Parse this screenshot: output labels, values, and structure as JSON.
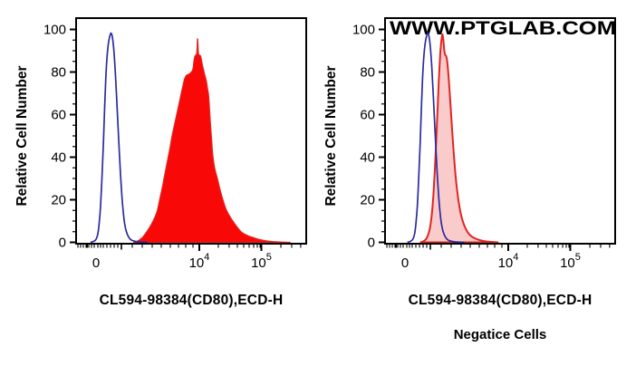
{
  "figure": {
    "watermark": "WWW.PTGLAB.COM",
    "background": "#ffffff"
  },
  "colors": {
    "axis": "#000000",
    "blue_curve": "#2b2ba0",
    "red_fill": "#f90808",
    "red_stroke": "#e02520",
    "pink_fill": "#f9cbca",
    "watermark_gray": "#d3d3d3"
  },
  "chart_data": [
    {
      "type": "area",
      "panel": "left",
      "title": "",
      "xlabel": "CL594-98384(CD80),ECD-H",
      "ylabel": "Relative Cell Number",
      "caption": "",
      "watermark": "",
      "x_scale": "biexponential (flow cytometry fluorescence axis)",
      "ylim": [
        0,
        100
      ],
      "y_major_ticks": [
        0,
        20,
        40,
        60,
        80,
        100
      ],
      "y_minor_ticks": [
        5,
        10,
        15,
        25,
        30,
        35,
        45,
        50,
        55,
        65,
        70,
        75,
        85,
        90,
        95
      ],
      "x_ticks": [
        {
          "frac": 0.0866,
          "base": "0",
          "exp": ""
        },
        {
          "frac": 0.5354,
          "base": "10",
          "exp": "4"
        },
        {
          "frac": 0.805,
          "base": "10",
          "exp": "5"
        }
      ],
      "x_medium_ticks": [
        0.1969
      ],
      "x_minor_ticks": [
        0.008,
        0.0197,
        0.0315,
        0.0433,
        0.0462,
        0.0492,
        0.0551,
        0.0669,
        0.0787,
        0.0945,
        0.1063,
        0.1181,
        0.1339,
        0.1496,
        0.1654,
        0.1811,
        0.2441,
        0.2874,
        0.3307,
        0.3701,
        0.4094,
        0.4449,
        0.4764,
        0.5079,
        0.618,
        0.665,
        0.7008,
        0.7283,
        0.752,
        0.7717,
        0.7874,
        0.7992,
        0.89,
        0.937,
        0.976
      ],
      "series": [
        {
          "name": "red-filled-histogram",
          "style": "filled",
          "color": "#e02520",
          "fill": "#f90808",
          "fill_opacity": 1,
          "stroke_width": 1.2,
          "peak": {
            "value": 95.6,
            "x_frac": 0.5276,
            "x_approx": "~1.3x10^4"
          },
          "points": [
            [
              0.25,
              0
            ],
            [
              0.27,
              0.8
            ],
            [
              0.29,
              2.5
            ],
            [
              0.307,
              5
            ],
            [
              0.322,
              7.5
            ],
            [
              0.339,
              11
            ],
            [
              0.353,
              15
            ],
            [
              0.365,
              21
            ],
            [
              0.375,
              26
            ],
            [
              0.382,
              30
            ],
            [
              0.391,
              35
            ],
            [
              0.4,
              40
            ],
            [
              0.409,
              45
            ],
            [
              0.417,
              50
            ],
            [
              0.427,
              55
            ],
            [
              0.437,
              60
            ],
            [
              0.447,
              65
            ],
            [
              0.457,
              70
            ],
            [
              0.465,
              74
            ],
            [
              0.472,
              77
            ],
            [
              0.48,
              78.5
            ],
            [
              0.49,
              79
            ],
            [
              0.4965,
              79.5
            ],
            [
              0.5045,
              80.5
            ],
            [
              0.5085,
              82
            ],
            [
              0.5125,
              85.5
            ],
            [
              0.5165,
              87.5
            ],
            [
              0.5205,
              88
            ],
            [
              0.5237,
              88.5
            ],
            [
              0.5256,
              91
            ],
            [
              0.5276,
              95.6
            ],
            [
              0.5296,
              93
            ],
            [
              0.5315,
              89
            ],
            [
              0.535,
              88
            ],
            [
              0.541,
              87.5
            ],
            [
              0.545,
              85.5
            ],
            [
              0.5495,
              83
            ],
            [
              0.554,
              81
            ],
            [
              0.557,
              79.5
            ],
            [
              0.5655,
              76
            ],
            [
              0.5715,
              72
            ],
            [
              0.5748,
              70
            ],
            [
              0.578,
              66
            ],
            [
              0.583,
              57
            ],
            [
              0.589,
              48
            ],
            [
              0.594,
              41
            ],
            [
              0.602,
              35
            ],
            [
              0.614,
              30
            ],
            [
              0.625,
              25
            ],
            [
              0.638,
              20
            ],
            [
              0.654,
              15
            ],
            [
              0.681,
              10
            ],
            [
              0.717,
              5
            ],
            [
              0.745,
              3.2
            ],
            [
              0.76,
              2.6
            ],
            [
              0.79,
              1.5
            ],
            [
              0.811,
              1
            ],
            [
              0.85,
              0.4
            ],
            [
              0.898,
              0.12
            ],
            [
              0.93,
              0
            ]
          ]
        },
        {
          "name": "blue-open-histogram",
          "style": "open",
          "color": "#2b2ba0",
          "fill": "none",
          "fill_opacity": 0,
          "stroke_width": 1.7,
          "peak": {
            "value": 98.3,
            "x_frac": 0.1515,
            "x_approx": "near 0 (autofluorescence)"
          },
          "points": [
            [
              0.063,
              0
            ],
            [
              0.077,
              0.5
            ],
            [
              0.087,
              1.5
            ],
            [
              0.0945,
              4
            ],
            [
              0.1004,
              9
            ],
            [
              0.1063,
              17
            ],
            [
              0.1122,
              30
            ],
            [
              0.1181,
              45
            ],
            [
              0.1236,
              62
            ],
            [
              0.129,
              77
            ],
            [
              0.1344,
              87
            ],
            [
              0.1398,
              93
            ],
            [
              0.1457,
              96.5
            ],
            [
              0.1515,
              98.3
            ],
            [
              0.1575,
              96.5
            ],
            [
              0.1634,
              91
            ],
            [
              0.1693,
              82
            ],
            [
              0.1752,
              70
            ],
            [
              0.1811,
              57
            ],
            [
              0.187,
              44
            ],
            [
              0.1929,
              32
            ],
            [
              0.1988,
              22
            ],
            [
              0.2047,
              14.5
            ],
            [
              0.2106,
              9
            ],
            [
              0.2185,
              5
            ],
            [
              0.2283,
              2.5
            ],
            [
              0.24,
              1.1
            ],
            [
              0.26,
              0.4
            ],
            [
              0.285,
              0.1
            ],
            [
              0.31,
              0
            ]
          ]
        }
      ]
    },
    {
      "type": "area",
      "panel": "right",
      "title": "",
      "xlabel": "CL594-98384(CD80),ECD-H",
      "ylabel": "Relative Cell Number",
      "caption": "Negatice Cells",
      "watermark": "WWW.PTGLAB.COM",
      "x_scale": "biexponential (flow cytometry fluorescence axis)",
      "ylim": [
        0,
        100
      ],
      "y_major_ticks": [
        0,
        20,
        40,
        60,
        80,
        100
      ],
      "y_minor_ticks": [
        5,
        10,
        15,
        25,
        30,
        35,
        45,
        50,
        55,
        65,
        70,
        75,
        85,
        90,
        95
      ],
      "x_ticks": [
        {
          "frac": 0.0866,
          "base": "0",
          "exp": ""
        },
        {
          "frac": 0.5354,
          "base": "10",
          "exp": "4"
        },
        {
          "frac": 0.805,
          "base": "10",
          "exp": "5"
        }
      ],
      "x_medium_ticks": [
        0.1969
      ],
      "x_minor_ticks": [
        0.008,
        0.0197,
        0.0315,
        0.0433,
        0.0462,
        0.0492,
        0.0551,
        0.0669,
        0.0787,
        0.0945,
        0.1063,
        0.1181,
        0.1339,
        0.1496,
        0.1654,
        0.1811,
        0.2441,
        0.2874,
        0.3307,
        0.3701,
        0.4094,
        0.4449,
        0.4764,
        0.5079,
        0.618,
        0.665,
        0.7008,
        0.7283,
        0.752,
        0.7717,
        0.7874,
        0.7992,
        0.89,
        0.937,
        0.976
      ],
      "series": [
        {
          "name": "red-outline-pink-filled-histogram",
          "style": "filled-outline",
          "color": "#e02520",
          "fill": "#f9cbca",
          "fill_opacity": 1,
          "stroke_width": 2,
          "peak": {
            "value": 97.7,
            "x_frac": 0.249,
            "x_approx": "~10^3 region (low positive)"
          },
          "points": [
            [
              0.155,
              0
            ],
            [
              0.168,
              0.6
            ],
            [
              0.178,
              1.5
            ],
            [
              0.187,
              3.5
            ],
            [
              0.1955,
              7
            ],
            [
              0.203,
              13
            ],
            [
              0.21,
              22
            ],
            [
              0.2165,
              34
            ],
            [
              0.2225,
              48
            ],
            [
              0.2285,
              63
            ],
            [
              0.234,
              77
            ],
            [
              0.2395,
              88
            ],
            [
              0.2445,
              94.5
            ],
            [
              0.249,
              97.7
            ],
            [
              0.2535,
              95
            ],
            [
              0.2575,
              90
            ],
            [
              0.2615,
              88
            ],
            [
              0.2655,
              87.5
            ],
            [
              0.2695,
              85.5
            ],
            [
              0.2745,
              80
            ],
            [
              0.28,
              72
            ],
            [
              0.286,
              62
            ],
            [
              0.292,
              52
            ],
            [
              0.2985,
              42
            ],
            [
              0.305,
              33
            ],
            [
              0.312,
              25.5
            ],
            [
              0.32,
              19
            ],
            [
              0.329,
              13.5
            ],
            [
              0.339,
              9.5
            ],
            [
              0.35,
              6.5
            ],
            [
              0.362,
              4.3
            ],
            [
              0.376,
              2.8
            ],
            [
              0.392,
              1.8
            ],
            [
              0.41,
              1.1
            ],
            [
              0.43,
              0.6
            ],
            [
              0.455,
              0.25
            ],
            [
              0.49,
              0
            ]
          ]
        },
        {
          "name": "blue-open-histogram",
          "style": "open",
          "color": "#2b2ba0",
          "fill": "none",
          "fill_opacity": 0,
          "stroke_width": 1.7,
          "peak": {
            "value": 98.3,
            "x_frac": 0.1855,
            "x_approx": "near 0 (autofluorescence)"
          },
          "points": [
            [
              0.097,
              0
            ],
            [
              0.111,
              0.5
            ],
            [
              0.121,
              1.5
            ],
            [
              0.1285,
              4
            ],
            [
              0.1344,
              9
            ],
            [
              0.1403,
              17
            ],
            [
              0.1462,
              30
            ],
            [
              0.1521,
              45
            ],
            [
              0.1576,
              62
            ],
            [
              0.163,
              77
            ],
            [
              0.1684,
              87
            ],
            [
              0.1738,
              93
            ],
            [
              0.1797,
              96.5
            ],
            [
              0.1855,
              98.3
            ],
            [
              0.1915,
              96.5
            ],
            [
              0.1974,
              91
            ],
            [
              0.2033,
              82
            ],
            [
              0.2092,
              70
            ],
            [
              0.2151,
              57
            ],
            [
              0.221,
              44
            ],
            [
              0.2269,
              32
            ],
            [
              0.2328,
              22
            ],
            [
              0.2387,
              14.5
            ],
            [
              0.2446,
              9
            ],
            [
              0.2525,
              5
            ],
            [
              0.2623,
              2.5
            ],
            [
              0.274,
              1.1
            ],
            [
              0.294,
              0.4
            ],
            [
              0.319,
              0.1
            ],
            [
              0.344,
              0
            ]
          ]
        }
      ]
    }
  ]
}
